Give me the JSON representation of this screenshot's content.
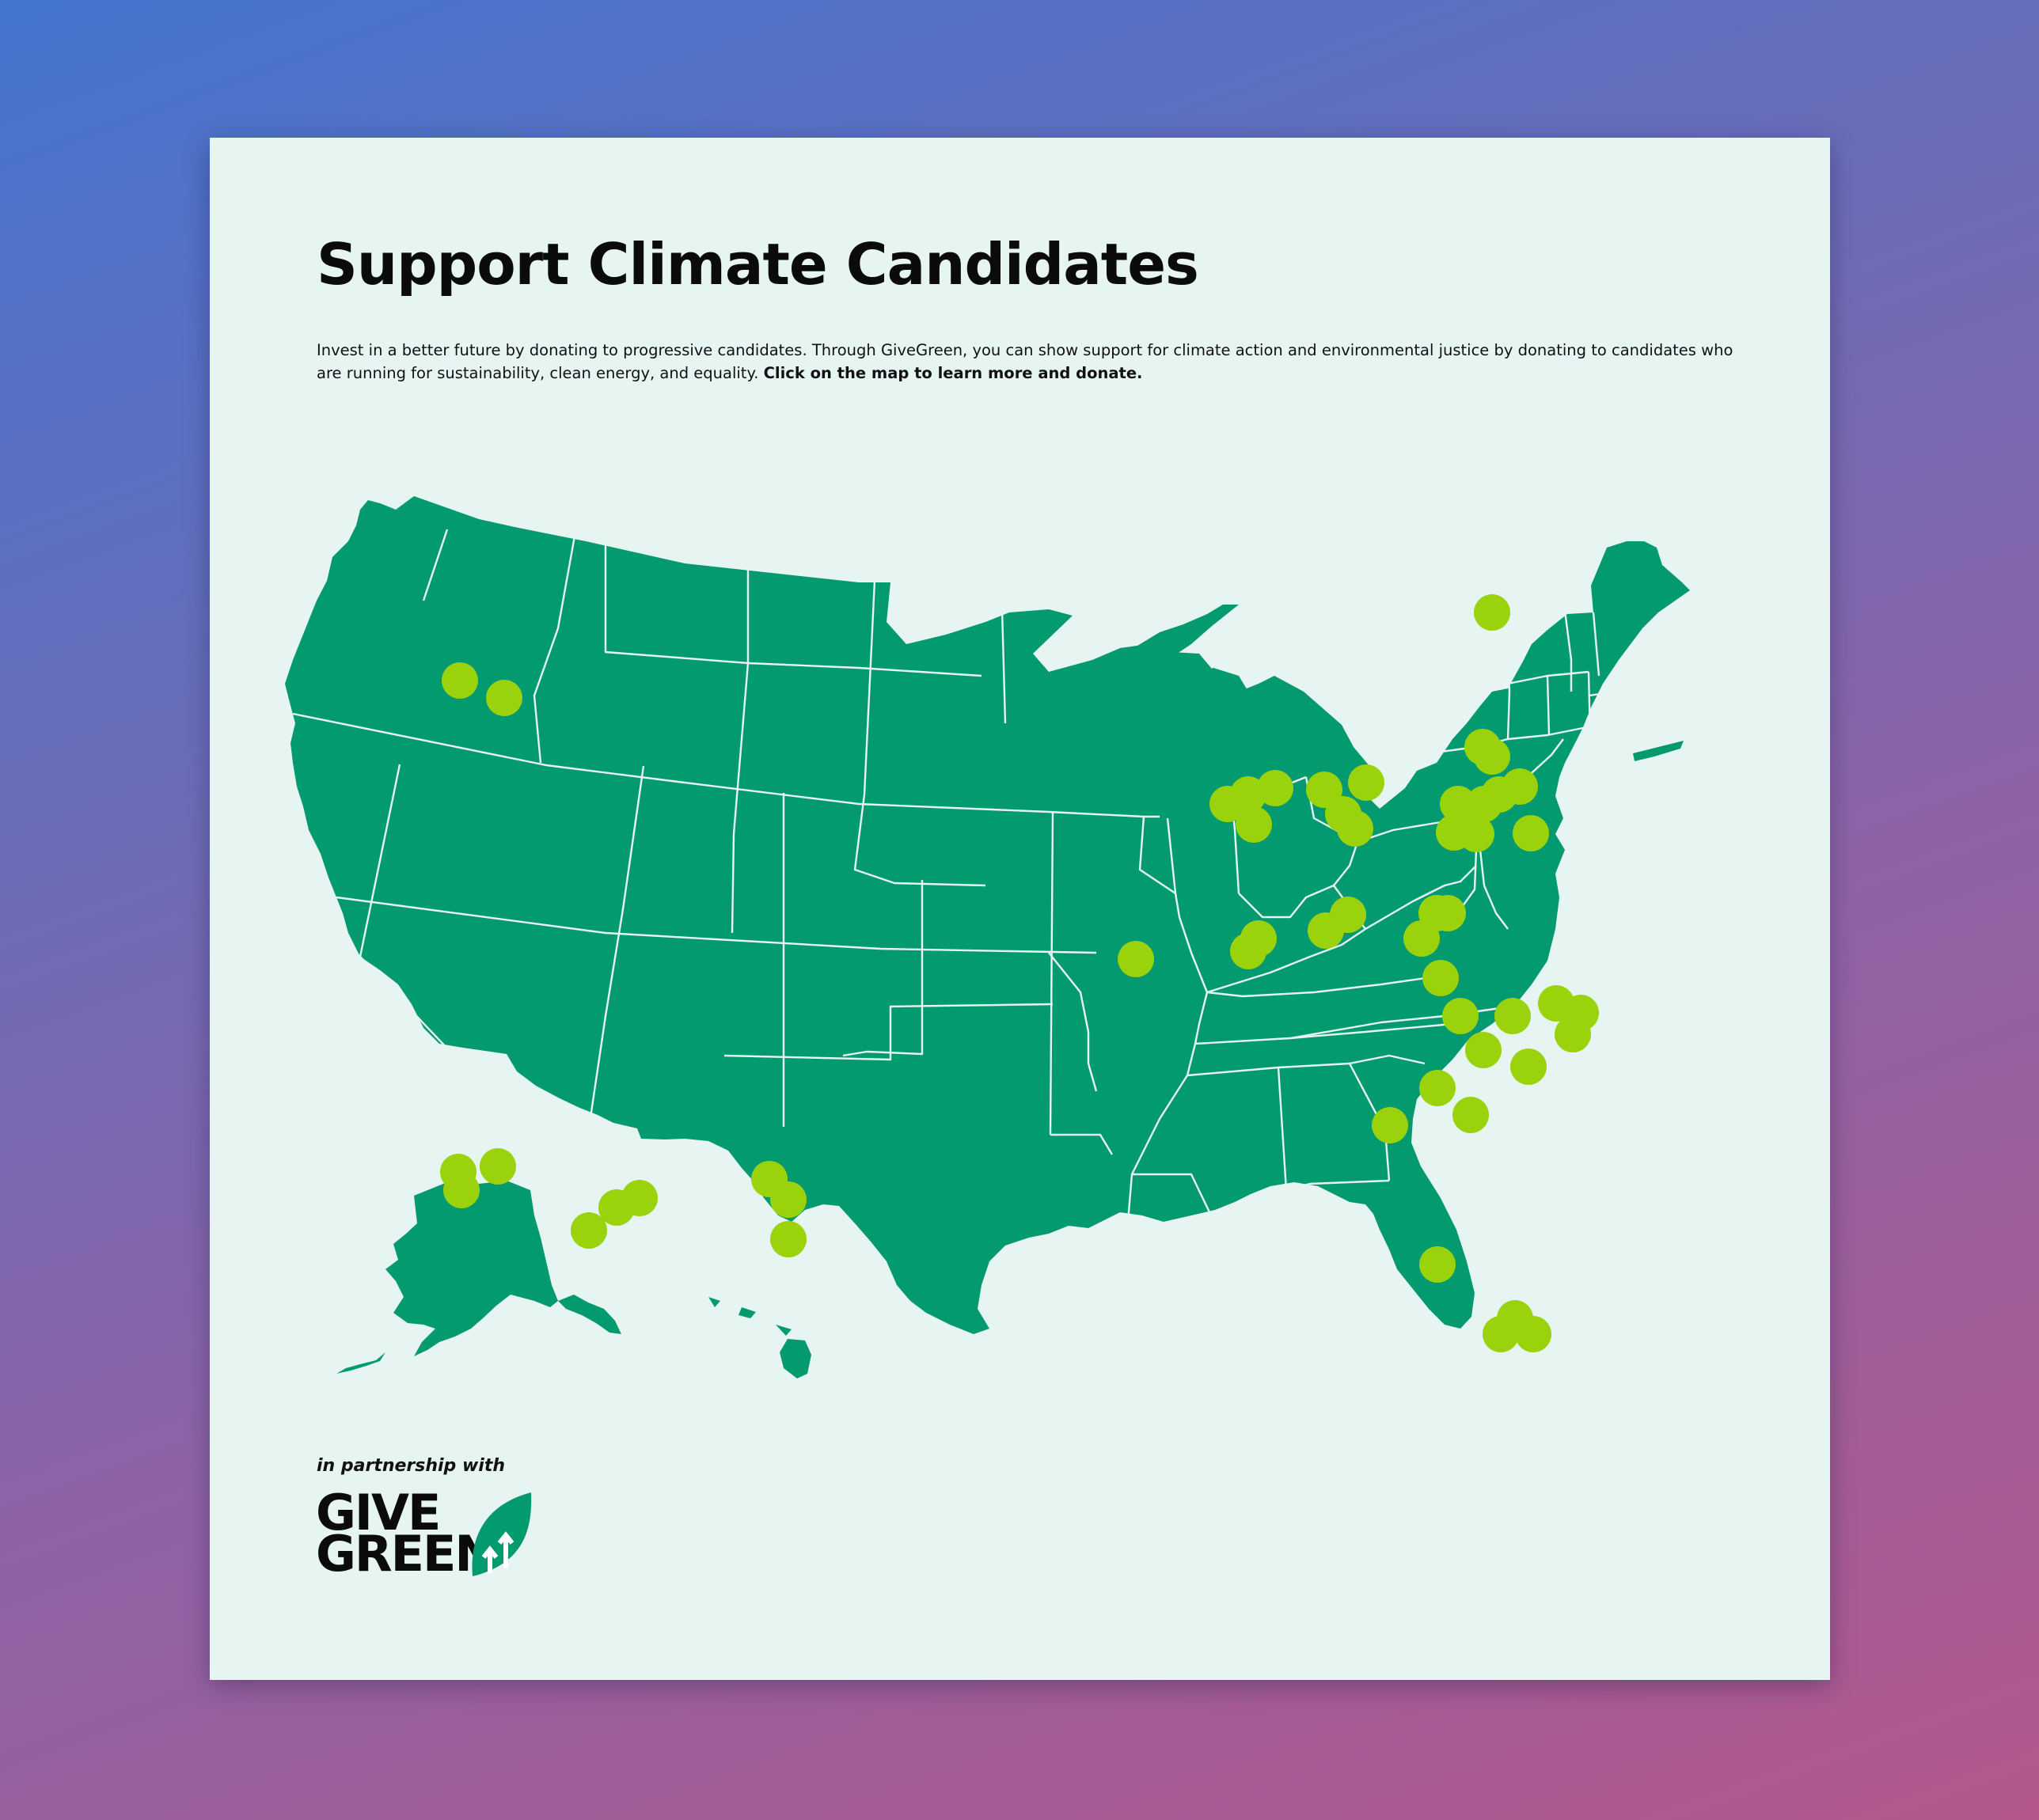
{
  "header": {
    "title": "Support Climate Candidates",
    "description": "Invest in a better future by donating to progressive candidates. Through GiveGreen, you can show support for climate action and environmental justice by donating to candidates who are running for sustainability, clean energy, and equality.",
    "cta": "Click on the map to learn more and donate."
  },
  "footer": {
    "partner_label": "in partnership with",
    "logo_line1": "GIVE",
    "logo_line2": "GREEN"
  },
  "map": {
    "land_color": "#049a70",
    "border_color": "#e6f5f1",
    "marker_color": "#9ad20c",
    "marker_count": 48
  },
  "colors": {
    "card_background": "#e6f5f1",
    "title_text": "#0b0b0b"
  }
}
